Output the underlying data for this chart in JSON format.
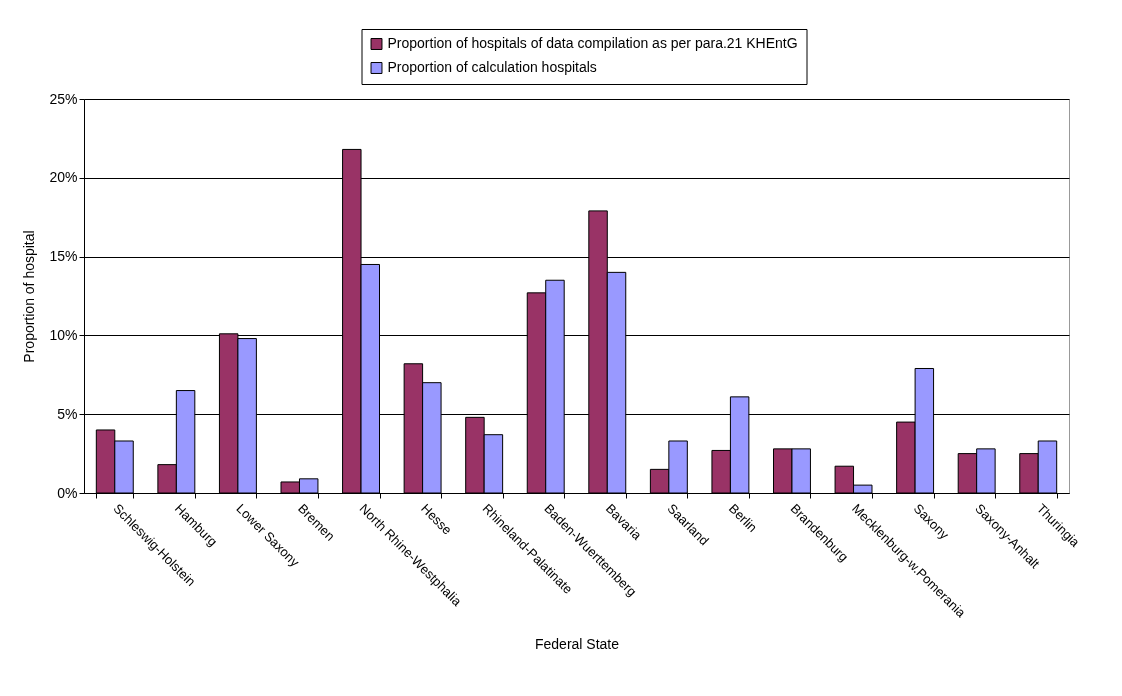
{
  "chart_data": {
    "type": "bar",
    "xlabel": "Federal State",
    "ylabel": "Proportion of hospital",
    "categories": [
      "Schleswig-Holstein",
      "Hamburg",
      "Lower Saxony",
      "Bremen",
      "North Rhine-Westphalia",
      "Hesse",
      "Rhineland-Palatinate",
      "Baden-Wuerttemberg",
      "Bavaria",
      "Saarland",
      "Berlin",
      "Brandenburg",
      "Mecklenburg-w.Pomerania",
      "Saxony",
      "Saxony-Anhalt",
      "Thuringia"
    ],
    "series": [
      {
        "name": "Proportion of hospitals of data compilation as per para.21 KHEntG",
        "color": "#993366",
        "values": [
          4.0,
          1.8,
          10.1,
          0.7,
          21.8,
          8.2,
          4.8,
          12.7,
          17.9,
          1.5,
          2.7,
          2.8,
          1.7,
          4.5,
          2.5,
          2.5
        ]
      },
      {
        "name": "Proportion of calculation hospitals",
        "color": "#9999ff",
        "values": [
          3.3,
          6.5,
          9.8,
          0.9,
          14.5,
          7.0,
          3.7,
          13.5,
          14.0,
          3.3,
          6.1,
          2.8,
          0.5,
          7.9,
          2.8,
          3.3
        ]
      }
    ],
    "ylim": [
      0,
      25
    ],
    "yticks": [
      {
        "value": 0,
        "label": "0%"
      },
      {
        "value": 5,
        "label": "5%"
      },
      {
        "value": 10,
        "label": "10%"
      },
      {
        "value": 15,
        "label": "15%"
      },
      {
        "value": 20,
        "label": "20%"
      },
      {
        "value": 25,
        "label": "25%"
      }
    ],
    "grid": "y",
    "legend": "top"
  }
}
